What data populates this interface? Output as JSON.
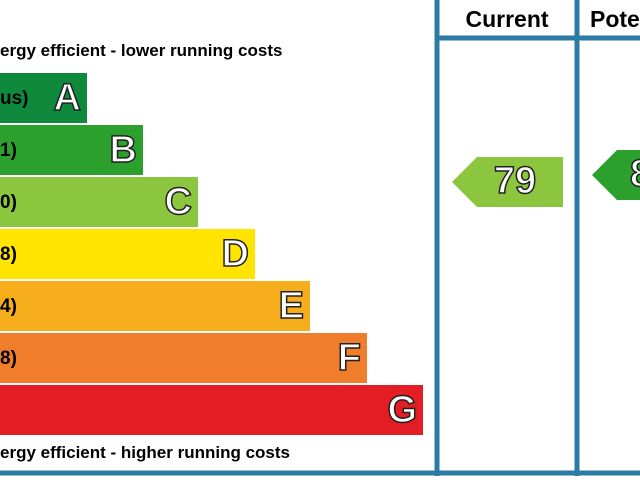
{
  "header": {
    "current": "Current",
    "potential": "Pote"
  },
  "top_note": "ergy efficient - lower running costs",
  "bottom_note": "ergy efficient - higher running costs",
  "bands": [
    {
      "range": "us)",
      "letter": "A"
    },
    {
      "range": "1)",
      "letter": "B"
    },
    {
      "range": "0)",
      "letter": "C"
    },
    {
      "range": "8)",
      "letter": "D"
    },
    {
      "range": "4)",
      "letter": "E"
    },
    {
      "range": "8)",
      "letter": "F"
    },
    {
      "range": null,
      "letter": "G"
    }
  ],
  "current": {
    "rating": "79"
  },
  "potential": {
    "rating": "8"
  }
}
